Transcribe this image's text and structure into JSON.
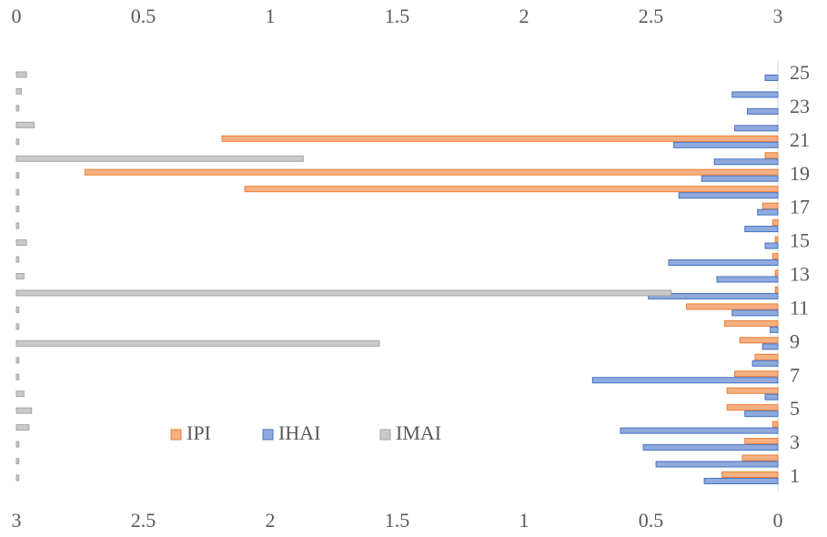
{
  "chart_data": {
    "type": "bar",
    "orientation": "horizontal",
    "categories": [
      "1",
      null,
      "3",
      null,
      "5",
      null,
      "7",
      null,
      "9",
      null,
      "11",
      null,
      "13",
      null,
      "15",
      null,
      "17",
      null,
      "19",
      null,
      "21",
      null,
      "23",
      null,
      "25"
    ],
    "xlim": [
      0,
      3
    ],
    "xticks": [
      0,
      0.5,
      1,
      1.5,
      2,
      2.5,
      3
    ],
    "x_reversed": true,
    "x2lim": [
      0,
      3
    ],
    "x2ticks": [
      0,
      0.5,
      1,
      1.5,
      2,
      2.5,
      3
    ],
    "legend": "bottom",
    "series": [
      {
        "name": "IPI",
        "color": "#f4b183",
        "edge": "#ed7d31",
        "axis": "x",
        "values": [
          0.22,
          0.14,
          0.13,
          0.02,
          0.2,
          0.2,
          0.17,
          0.09,
          0.15,
          0.21,
          0.36,
          0.01,
          0.01,
          0.02,
          0.01,
          0.02,
          0.06,
          2.1,
          2.73,
          0.05,
          2.19,
          0,
          0,
          0,
          0
        ]
      },
      {
        "name": "IHAI",
        "color": "#8faadc",
        "edge": "#4472c4",
        "axis": "x",
        "values": [
          0.29,
          0.48,
          0.53,
          0.62,
          0.13,
          0.05,
          0.73,
          0.1,
          0.06,
          0.03,
          0.18,
          0.51,
          0.24,
          0.43,
          0.05,
          0.13,
          0.08,
          0.39,
          0.3,
          0.25,
          0.41,
          0.17,
          0.12,
          0.18,
          0.05
        ]
      },
      {
        "name": "IMAI",
        "color": "#c9c9c9",
        "edge": "#a5a5a5",
        "axis": "x2",
        "values": [
          0.01,
          0.01,
          0.01,
          0.05,
          0.06,
          0.03,
          0.01,
          0.01,
          1.43,
          0.01,
          0.01,
          2.58,
          0.03,
          0.01,
          0.04,
          0.01,
          0.01,
          0.01,
          0.01,
          1.13,
          0.01,
          0.07,
          0.01,
          0.02,
          0.04
        ]
      }
    ]
  }
}
